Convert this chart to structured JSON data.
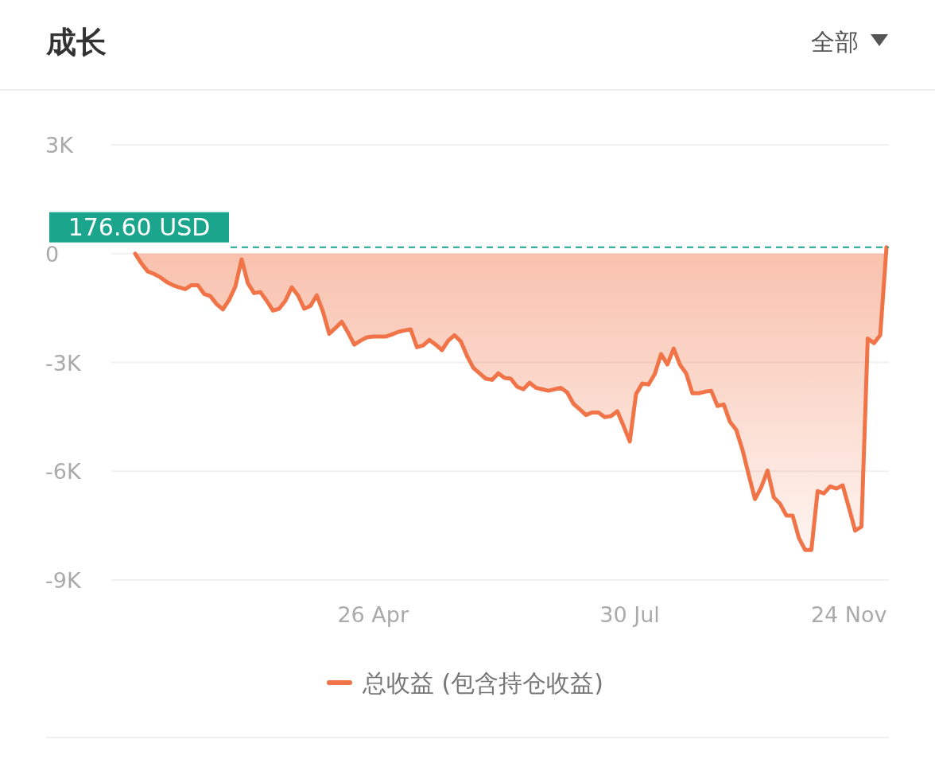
{
  "chart_data": {
    "type": "area",
    "title": "成长",
    "annotations": [
      "全部"
    ],
    "categories": [
      null,
      null,
      null,
      null,
      null,
      null,
      null,
      null,
      null,
      null,
      null,
      null,
      null,
      null,
      null,
      null,
      null,
      null,
      null,
      null,
      null,
      null,
      null,
      null,
      null,
      null,
      null,
      null,
      null,
      null,
      null,
      null,
      null,
      null,
      null,
      null,
      null,
      null,
      "26 Apr",
      null,
      null,
      null,
      null,
      null,
      null,
      null,
      null,
      null,
      null,
      null,
      null,
      null,
      null,
      null,
      null,
      null,
      null,
      null,
      null,
      null,
      null,
      null,
      null,
      null,
      null,
      null,
      null,
      null,
      null,
      null,
      null,
      null,
      null,
      null,
      null,
      null,
      null,
      null,
      null,
      "30 Jul",
      null,
      null,
      null,
      null,
      null,
      null,
      null,
      null,
      null,
      null,
      null,
      null,
      null,
      null,
      null,
      null,
      null,
      null,
      null,
      null,
      null,
      null,
      null,
      null,
      null,
      null,
      null,
      null,
      null,
      null,
      null,
      null,
      null,
      null,
      "24 Nov",
      null,
      null,
      null,
      null,
      null,
      null
    ],
    "series": [
      {
        "name": "总收益 (包含持仓收益)",
        "color": "#f07448",
        "values": [
          0,
          -270,
          -490,
          -560,
          -650,
          -780,
          -870,
          -930,
          -980,
          -870,
          -870,
          -1110,
          -1170,
          -1390,
          -1540,
          -1280,
          -910,
          -160,
          -820,
          -1090,
          -1060,
          -1300,
          -1570,
          -1520,
          -1300,
          -930,
          -1150,
          -1520,
          -1440,
          -1150,
          -1610,
          -2210,
          -2050,
          -1880,
          -2180,
          -2510,
          -2400,
          -2310,
          -2290,
          -2290,
          -2290,
          -2230,
          -2160,
          -2120,
          -2090,
          -2580,
          -2530,
          -2380,
          -2510,
          -2660,
          -2400,
          -2250,
          -2420,
          -2820,
          -3150,
          -3300,
          -3450,
          -3480,
          -3300,
          -3430,
          -3450,
          -3670,
          -3740,
          -3560,
          -3700,
          -3740,
          -3780,
          -3740,
          -3700,
          -3830,
          -4140,
          -4290,
          -4450,
          -4380,
          -4380,
          -4510,
          -4480,
          -4350,
          -4750,
          -5180,
          -3870,
          -3580,
          -3610,
          -3320,
          -2770,
          -3060,
          -2620,
          -3060,
          -3300,
          -3850,
          -3850,
          -3810,
          -3780,
          -4200,
          -4160,
          -4640,
          -4860,
          -5410,
          -6110,
          -6770,
          -6440,
          -5980,
          -6720,
          -6900,
          -7220,
          -7220,
          -7840,
          -8170,
          -8170,
          -6550,
          -6610,
          -6420,
          -6480,
          -6390,
          -7010,
          -7640,
          -7530,
          -2340,
          -2470,
          -2250,
          176.6
        ]
      }
    ],
    "ylim": [
      -9000,
      3000
    ],
    "yticks": [
      {
        "value": 3000,
        "label": "3K"
      },
      0,
      {
        "value": -3000,
        "label": "-3K"
      },
      {
        "value": -6000,
        "label": "-6K"
      },
      {
        "value": -9000,
        "label": "-9K"
      }
    ],
    "ref_lines": [
      {
        "axis": "y",
        "value": 176.6,
        "label": "176.60 USD",
        "color": "#1aa58c",
        "line_style": "dashed"
      }
    ],
    "grid": "y",
    "legend": "bottom",
    "line_style": "solid",
    "marker": "none"
  }
}
